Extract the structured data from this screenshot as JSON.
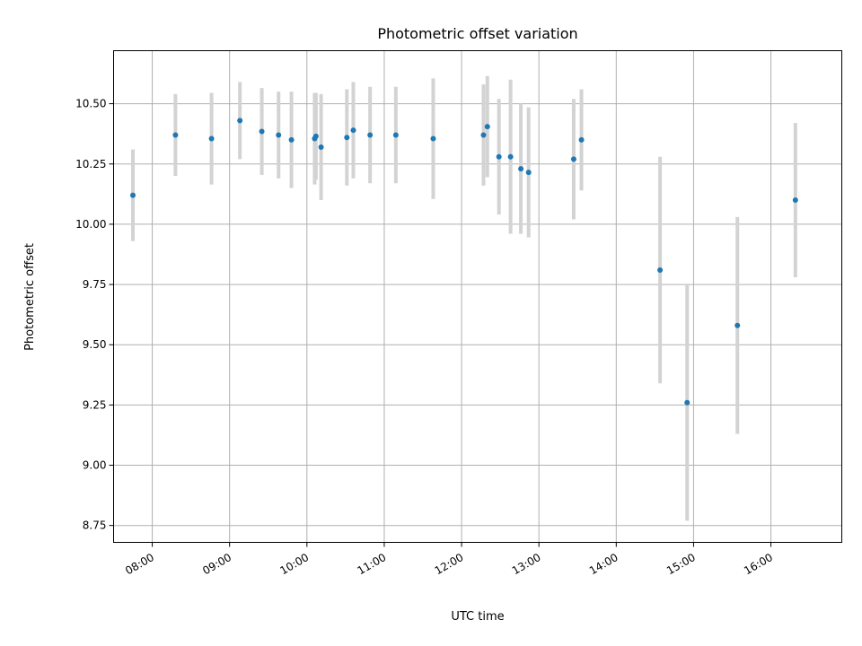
{
  "chart_data": {
    "type": "scatter",
    "title": "Photometric offset variation",
    "xlabel": "UTC time",
    "ylabel": "Photometric offset",
    "xlim": [
      "07:30",
      "16:55"
    ],
    "ylim": [
      8.68,
      10.72
    ],
    "x_ticks": [
      "08:00",
      "09:00",
      "10:00",
      "11:00",
      "12:00",
      "13:00",
      "14:00",
      "15:00",
      "16:00"
    ],
    "y_ticks": [
      "8.75",
      "9.00",
      "9.25",
      "9.50",
      "9.75",
      "10.00",
      "10.25",
      "10.50"
    ],
    "grid": true,
    "marker_color": "#1f77b4",
    "errorbar_color": "#d3d3d3",
    "points": [
      {
        "x": "07:45",
        "y": 10.12,
        "err": 0.19
      },
      {
        "x": "08:18",
        "y": 10.37,
        "err": 0.17
      },
      {
        "x": "08:46",
        "y": 10.355,
        "err": 0.19
      },
      {
        "x": "09:08",
        "y": 10.43,
        "err": 0.16
      },
      {
        "x": "09:25",
        "y": 10.385,
        "err": 0.18
      },
      {
        "x": "09:38",
        "y": 10.37,
        "err": 0.18
      },
      {
        "x": "09:48",
        "y": 10.35,
        "err": 0.2
      },
      {
        "x": "10:06",
        "y": 10.355,
        "err": 0.19
      },
      {
        "x": "10:07",
        "y": 10.365,
        "err": 0.18
      },
      {
        "x": "10:11",
        "y": 10.32,
        "err": 0.22
      },
      {
        "x": "10:31",
        "y": 10.36,
        "err": 0.2
      },
      {
        "x": "10:36",
        "y": 10.39,
        "err": 0.2
      },
      {
        "x": "10:49",
        "y": 10.37,
        "err": 0.2
      },
      {
        "x": "11:09",
        "y": 10.37,
        "err": 0.2
      },
      {
        "x": "11:38",
        "y": 10.355,
        "err": 0.25
      },
      {
        "x": "12:17",
        "y": 10.37,
        "err": 0.21
      },
      {
        "x": "12:20",
        "y": 10.405,
        "err": 0.21
      },
      {
        "x": "12:29",
        "y": 10.28,
        "err": 0.24
      },
      {
        "x": "12:38",
        "y": 10.28,
        "err": 0.32
      },
      {
        "x": "12:46",
        "y": 10.23,
        "err": 0.27
      },
      {
        "x": "12:52",
        "y": 10.215,
        "err": 0.27
      },
      {
        "x": "13:27",
        "y": 10.27,
        "err": 0.25
      },
      {
        "x": "13:33",
        "y": 10.35,
        "err": 0.21
      },
      {
        "x": "14:34",
        "y": 9.81,
        "err": 0.47
      },
      {
        "x": "14:55",
        "y": 9.26,
        "err": 0.49
      },
      {
        "x": "15:34",
        "y": 9.58,
        "err": 0.45
      },
      {
        "x": "16:19",
        "y": 10.1,
        "err": 0.32
      }
    ]
  }
}
